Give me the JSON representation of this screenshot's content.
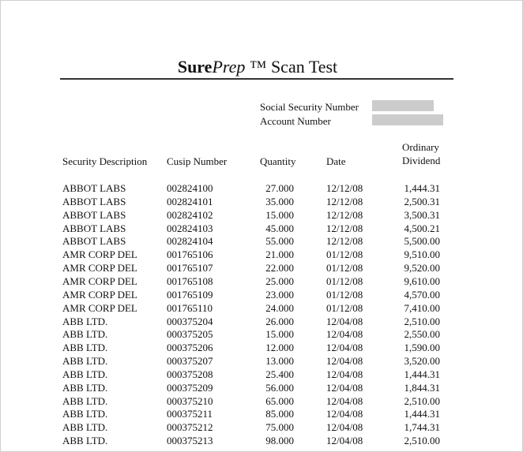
{
  "title": {
    "brand_bold": "Sure",
    "brand_italic": "Prep",
    "rest": " ™ Scan Test"
  },
  "fields": [
    {
      "label": "Social Security Number",
      "value_redacted": true
    },
    {
      "label": "Account Number",
      "value_redacted": true
    }
  ],
  "colors": {
    "redaction": "#cccccc"
  },
  "table": {
    "headers": {
      "desc": "Security Description",
      "cusip": "Cusip Number",
      "qty": "Quantity",
      "date": "Date",
      "div_line1": "Ordinary",
      "div_line2": "Dividend"
    },
    "rows": [
      {
        "desc": "ABBOT LABS",
        "cusip": "002824100",
        "qty": "27.000",
        "date": "12/12/08",
        "div": "1,444.31"
      },
      {
        "desc": "ABBOT LABS",
        "cusip": "002824101",
        "qty": "35.000",
        "date": "12/12/08",
        "div": "2,500.31"
      },
      {
        "desc": "ABBOT LABS",
        "cusip": "002824102",
        "qty": "15.000",
        "date": "12/12/08",
        "div": "3,500.31"
      },
      {
        "desc": "ABBOT LABS",
        "cusip": "002824103",
        "qty": "45.000",
        "date": "12/12/08",
        "div": "4,500.21"
      },
      {
        "desc": "ABBOT LABS",
        "cusip": "002824104",
        "qty": "55.000",
        "date": "12/12/08",
        "div": "5,500.00"
      },
      {
        "desc": "AMR CORP DEL",
        "cusip": "001765106",
        "qty": "21.000",
        "date": "01/12/08",
        "div": "9,510.00"
      },
      {
        "desc": "AMR CORP DEL",
        "cusip": "001765107",
        "qty": "22.000",
        "date": "01/12/08",
        "div": "9,520.00"
      },
      {
        "desc": "AMR CORP DEL",
        "cusip": "001765108",
        "qty": "25.000",
        "date": "01/12/08",
        "div": "9,610.00"
      },
      {
        "desc": "AMR CORP DEL",
        "cusip": "001765109",
        "qty": "23.000",
        "date": "01/12/08",
        "div": "4,570.00"
      },
      {
        "desc": "AMR CORP DEL",
        "cusip": "001765110",
        "qty": "24.000",
        "date": "01/12/08",
        "div": "7,410.00"
      },
      {
        "desc": "ABB LTD.",
        "cusip": "000375204",
        "qty": "26.000",
        "date": "12/04/08",
        "div": "2,510.00"
      },
      {
        "desc": "ABB LTD.",
        "cusip": "000375205",
        "qty": "15.000",
        "date": "12/04/08",
        "div": "2,550.00"
      },
      {
        "desc": "ABB LTD.",
        "cusip": "000375206",
        "qty": "12.000",
        "date": "12/04/08",
        "div": "1,590.00"
      },
      {
        "desc": "ABB LTD.",
        "cusip": "000375207",
        "qty": "13.000",
        "date": "12/04/08",
        "div": "3,520.00"
      },
      {
        "desc": "ABB LTD.",
        "cusip": "000375208",
        "qty": "25.400",
        "date": "12/04/08",
        "div": "1,444.31"
      },
      {
        "desc": "ABB LTD.",
        "cusip": "000375209",
        "qty": "56.000",
        "date": "12/04/08",
        "div": "1,844.31"
      },
      {
        "desc": "ABB LTD.",
        "cusip": "000375210",
        "qty": "65.000",
        "date": "12/04/08",
        "div": "2,510.00"
      },
      {
        "desc": "ABB LTD.",
        "cusip": "000375211",
        "qty": "85.000",
        "date": "12/04/08",
        "div": "1,444.31"
      },
      {
        "desc": "ABB LTD.",
        "cusip": "000375212",
        "qty": "75.000",
        "date": "12/04/08",
        "div": "1,744.31"
      },
      {
        "desc": "ABB LTD.",
        "cusip": "000375213",
        "qty": "98.000",
        "date": "12/04/08",
        "div": "2,510.00"
      }
    ]
  }
}
